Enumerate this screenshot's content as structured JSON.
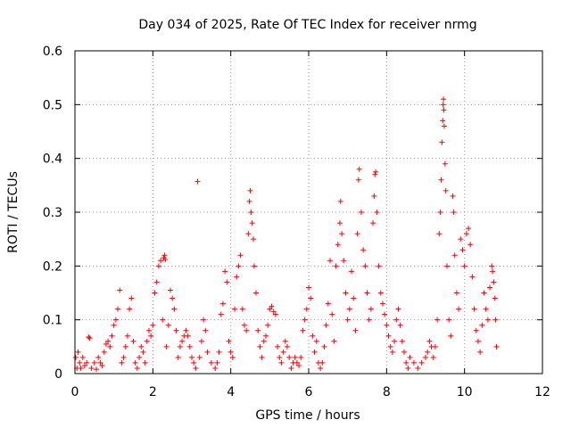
{
  "chart_data": {
    "type": "scatter",
    "title": "Day 034 of 2025, Rate Of TEC Index for receiver nrmg",
    "xlabel": "GPS time / hours",
    "ylabel": "ROTI / TECUs",
    "xlim": [
      0,
      12
    ],
    "ylim": [
      0,
      0.6
    ],
    "xticks": [
      "0",
      "2",
      "4",
      "6",
      "8",
      "10",
      "12"
    ],
    "yticks": [
      "0",
      "0.1",
      "0.2",
      "0.3",
      "0.4",
      "0.5",
      "0.6"
    ],
    "grid": true,
    "marker": "+",
    "color": "#ff0000",
    "series": [
      {
        "name": "",
        "points": [
          [
            0.02,
            0.03
          ],
          [
            0.05,
            0.01
          ],
          [
            0.08,
            0.04
          ],
          [
            0.12,
            0.02
          ],
          [
            0.15,
            0.01
          ],
          [
            0.2,
            0.03
          ],
          [
            0.25,
            0.015
          ],
          [
            0.3,
            0.02
          ],
          [
            0.35,
            0.068
          ],
          [
            0.38,
            0.066
          ],
          [
            0.42,
            0.01
          ],
          [
            0.5,
            0.02
          ],
          [
            0.55,
            0.008
          ],
          [
            0.6,
            0.03
          ],
          [
            0.65,
            0.02
          ],
          [
            0.7,
            0.015
          ],
          [
            0.75,
            0.04
          ],
          [
            0.8,
            0.055
          ],
          [
            0.85,
            0.06
          ],
          [
            0.9,
            0.05
          ],
          [
            0.95,
            0.07
          ],
          [
            1.0,
            0.09
          ],
          [
            1.05,
            0.1
          ],
          [
            1.1,
            0.12
          ],
          [
            1.15,
            0.155
          ],
          [
            1.2,
            0.02
          ],
          [
            1.25,
            0.03
          ],
          [
            1.3,
            0.05
          ],
          [
            1.35,
            0.07
          ],
          [
            1.4,
            0.12
          ],
          [
            1.45,
            0.14
          ],
          [
            1.5,
            0.06
          ],
          [
            1.55,
            0.02
          ],
          [
            1.6,
            0.01
          ],
          [
            1.65,
            0.03
          ],
          [
            1.7,
            0.05
          ],
          [
            1.75,
            0.04
          ],
          [
            1.8,
            0.02
          ],
          [
            1.85,
            0.06
          ],
          [
            1.9,
            0.08
          ],
          [
            1.95,
            0.07
          ],
          [
            2.0,
            0.09
          ],
          [
            2.05,
            0.15
          ],
          [
            2.1,
            0.17
          ],
          [
            2.15,
            0.2
          ],
          [
            2.2,
            0.21
          ],
          [
            2.25,
            0.1
          ],
          [
            2.28,
            0.215
          ],
          [
            2.3,
            0.22
          ],
          [
            2.32,
            0.212
          ],
          [
            2.35,
            0.05
          ],
          [
            2.4,
            0.09
          ],
          [
            2.45,
            0.155
          ],
          [
            2.5,
            0.14
          ],
          [
            2.55,
            0.12
          ],
          [
            2.6,
            0.08
          ],
          [
            2.65,
            0.03
          ],
          [
            2.7,
            0.05
          ],
          [
            2.75,
            0.06
          ],
          [
            2.8,
            0.07
          ],
          [
            2.85,
            0.08
          ],
          [
            2.9,
            0.07
          ],
          [
            2.95,
            0.05
          ],
          [
            3.0,
            0.03
          ],
          [
            3.05,
            0.02
          ],
          [
            3.1,
            0.01
          ],
          [
            3.15,
            0.357
          ],
          [
            3.2,
            0.03
          ],
          [
            3.25,
            0.06
          ],
          [
            3.3,
            0.1
          ],
          [
            3.35,
            0.08
          ],
          [
            3.4,
            0.04
          ],
          [
            3.5,
            0.02
          ],
          [
            3.6,
            0.01
          ],
          [
            3.65,
            0.02
          ],
          [
            3.7,
            0.04
          ],
          [
            3.75,
            0.11
          ],
          [
            3.8,
            0.13
          ],
          [
            3.85,
            0.19
          ],
          [
            3.9,
            0.17
          ],
          [
            3.95,
            0.06
          ],
          [
            4.0,
            0.04
          ],
          [
            4.05,
            0.03
          ],
          [
            4.1,
            0.12
          ],
          [
            4.15,
            0.18
          ],
          [
            4.2,
            0.2
          ],
          [
            4.25,
            0.22
          ],
          [
            4.3,
            0.12
          ],
          [
            4.35,
            0.09
          ],
          [
            4.4,
            0.08
          ],
          [
            4.45,
            0.26
          ],
          [
            4.48,
            0.32
          ],
          [
            4.5,
            0.34
          ],
          [
            4.52,
            0.3
          ],
          [
            4.55,
            0.28
          ],
          [
            4.58,
            0.25
          ],
          [
            4.6,
            0.2
          ],
          [
            4.65,
            0.15
          ],
          [
            4.7,
            0.08
          ],
          [
            4.75,
            0.05
          ],
          [
            4.8,
            0.03
          ],
          [
            4.85,
            0.06
          ],
          [
            4.9,
            0.07
          ],
          [
            4.95,
            0.09
          ],
          [
            5.0,
            0.12
          ],
          [
            5.05,
            0.125
          ],
          [
            5.1,
            0.115
          ],
          [
            5.15,
            0.11
          ],
          [
            5.2,
            0.05
          ],
          [
            5.25,
            0.03
          ],
          [
            5.3,
            0.02
          ],
          [
            5.35,
            0.04
          ],
          [
            5.4,
            0.06
          ],
          [
            5.45,
            0.05
          ],
          [
            5.5,
            0.03
          ],
          [
            5.55,
            0.01
          ],
          [
            5.6,
            0.02
          ],
          [
            5.65,
            0.03
          ],
          [
            5.7,
            0.02
          ],
          [
            5.75,
            0.015
          ],
          [
            5.8,
            0.03
          ],
          [
            5.85,
            0.08
          ],
          [
            5.9,
            0.1
          ],
          [
            5.95,
            0.12
          ],
          [
            6.0,
            0.16
          ],
          [
            6.05,
            0.14
          ],
          [
            6.1,
            0.07
          ],
          [
            6.15,
            0.04
          ],
          [
            6.2,
            0.06
          ],
          [
            6.25,
            0.02
          ],
          [
            6.3,
            0.01
          ],
          [
            6.35,
            0.02
          ],
          [
            6.4,
            0.05
          ],
          [
            6.45,
            0.09
          ],
          [
            6.5,
            0.13
          ],
          [
            6.55,
            0.21
          ],
          [
            6.6,
            0.11
          ],
          [
            6.65,
            0.06
          ],
          [
            6.7,
            0.2
          ],
          [
            6.75,
            0.24
          ],
          [
            6.8,
            0.28
          ],
          [
            6.82,
            0.32
          ],
          [
            6.85,
            0.26
          ],
          [
            6.9,
            0.21
          ],
          [
            6.95,
            0.15
          ],
          [
            7.0,
            0.1
          ],
          [
            7.05,
            0.12
          ],
          [
            7.1,
            0.19
          ],
          [
            7.15,
            0.14
          ],
          [
            7.2,
            0.08
          ],
          [
            7.25,
            0.26
          ],
          [
            7.28,
            0.36
          ],
          [
            7.3,
            0.38
          ],
          [
            7.35,
            0.3
          ],
          [
            7.4,
            0.23
          ],
          [
            7.45,
            0.2
          ],
          [
            7.5,
            0.15
          ],
          [
            7.55,
            0.1
          ],
          [
            7.6,
            0.12
          ],
          [
            7.65,
            0.28
          ],
          [
            7.68,
            0.33
          ],
          [
            7.7,
            0.37
          ],
          [
            7.72,
            0.375
          ],
          [
            7.75,
            0.3
          ],
          [
            7.8,
            0.2
          ],
          [
            7.85,
            0.15
          ],
          [
            7.9,
            0.13
          ],
          [
            7.95,
            0.11
          ],
          [
            8.0,
            0.09
          ],
          [
            8.05,
            0.07
          ],
          [
            8.1,
            0.05
          ],
          [
            8.15,
            0.04
          ],
          [
            8.2,
            0.06
          ],
          [
            8.25,
            0.1
          ],
          [
            8.3,
            0.12
          ],
          [
            8.35,
            0.09
          ],
          [
            8.4,
            0.06
          ],
          [
            8.45,
            0.04
          ],
          [
            8.5,
            0.02
          ],
          [
            8.55,
            0.01
          ],
          [
            8.6,
            0.03
          ],
          [
            8.7,
            0.02
          ],
          [
            8.8,
            0.01
          ],
          [
            8.9,
            0.02
          ],
          [
            9.0,
            0.03
          ],
          [
            9.05,
            0.04
          ],
          [
            9.1,
            0.06
          ],
          [
            9.15,
            0.05
          ],
          [
            9.2,
            0.03
          ],
          [
            9.25,
            0.05
          ],
          [
            9.3,
            0.1
          ],
          [
            9.35,
            0.26
          ],
          [
            9.38,
            0.3
          ],
          [
            9.4,
            0.36
          ],
          [
            9.42,
            0.43
          ],
          [
            9.44,
            0.47
          ],
          [
            9.45,
            0.5
          ],
          [
            9.46,
            0.51
          ],
          [
            9.47,
            0.49
          ],
          [
            9.48,
            0.46
          ],
          [
            9.5,
            0.39
          ],
          [
            9.52,
            0.34
          ],
          [
            9.55,
            0.2
          ],
          [
            9.6,
            0.1
          ],
          [
            9.65,
            0.07
          ],
          [
            9.7,
            0.33
          ],
          [
            9.72,
            0.3
          ],
          [
            9.75,
            0.22
          ],
          [
            9.8,
            0.15
          ],
          [
            9.85,
            0.12
          ],
          [
            9.9,
            0.25
          ],
          [
            9.95,
            0.23
          ],
          [
            10.0,
            0.2
          ],
          [
            10.05,
            0.26
          ],
          [
            10.1,
            0.27
          ],
          [
            10.15,
            0.24
          ],
          [
            10.2,
            0.18
          ],
          [
            10.25,
            0.12
          ],
          [
            10.3,
            0.08
          ],
          [
            10.35,
            0.06
          ],
          [
            10.4,
            0.04
          ],
          [
            10.45,
            0.09
          ],
          [
            10.5,
            0.15
          ],
          [
            10.55,
            0.12
          ],
          [
            10.6,
            0.1
          ],
          [
            10.65,
            0.16
          ],
          [
            10.7,
            0.2
          ],
          [
            10.72,
            0.19
          ],
          [
            10.75,
            0.17
          ],
          [
            10.78,
            0.14
          ],
          [
            10.8,
            0.1
          ],
          [
            10.82,
            0.05
          ]
        ]
      }
    ]
  }
}
